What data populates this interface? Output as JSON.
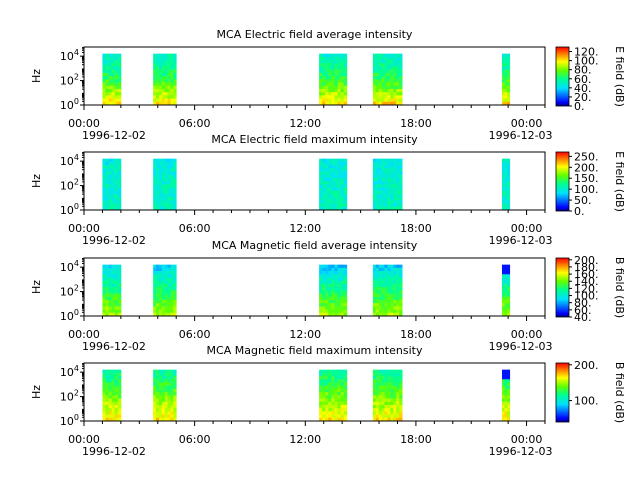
{
  "figure": {
    "x_tick_labels": [
      "00:00",
      "06:00",
      "12:00",
      "18:00",
      "00:00"
    ],
    "x_date_labels": [
      "1996-12-02",
      "1996-12-03"
    ]
  },
  "chart_data": [
    {
      "type": "heatmap",
      "title": "MCA  Electric field average intensity",
      "ylabel": "Hz",
      "ylim": [
        1,
        56000
      ],
      "y_scale": "log",
      "y_tick_labels": [
        "10^0",
        "10^2",
        "10^4"
      ],
      "xlim": [
        "1996-12-02T00:00",
        "1996-12-03T01:00"
      ],
      "colorbar": {
        "label": "E field (dB)",
        "range": [
          0,
          130
        ],
        "ticks": [
          "0.",
          "20.",
          "40.",
          "60.",
          "80.",
          "100.",
          "120."
        ]
      },
      "intervals": [
        {
          "start": "1996-12-02T01:00",
          "end": "1996-12-02T02:00"
        },
        {
          "start": "1996-12-02T03:45",
          "end": "1996-12-02T05:00"
        },
        {
          "start": "1996-12-02T12:45",
          "end": "1996-12-02T14:15"
        },
        {
          "start": "1996-12-02T15:40",
          "end": "1996-12-02T17:15"
        },
        {
          "start": "1996-12-02T22:40",
          "end": "1996-12-02T23:05"
        }
      ]
    },
    {
      "type": "heatmap",
      "title": "MCA  Electric field maximum intensity",
      "ylabel": "Hz",
      "ylim": [
        1,
        56000
      ],
      "y_scale": "log",
      "y_tick_labels": [
        "10^0",
        "10^2",
        "10^4"
      ],
      "xlim": [
        "1996-12-02T00:00",
        "1996-12-03T01:00"
      ],
      "colorbar": {
        "label": "E field (dB)",
        "range": [
          0,
          270
        ],
        "ticks": [
          "0.",
          "50.",
          "100.",
          "150.",
          "200.",
          "250."
        ]
      },
      "intervals": [
        {
          "start": "1996-12-02T01:00",
          "end": "1996-12-02T02:00"
        },
        {
          "start": "1996-12-02T03:45",
          "end": "1996-12-02T05:00"
        },
        {
          "start": "1996-12-02T12:45",
          "end": "1996-12-02T14:15"
        },
        {
          "start": "1996-12-02T15:40",
          "end": "1996-12-02T17:15"
        },
        {
          "start": "1996-12-02T22:40",
          "end": "1996-12-02T23:05"
        }
      ]
    },
    {
      "type": "heatmap",
      "title": "MCA  Magnetic field average intensity",
      "ylabel": "Hz",
      "ylim": [
        1,
        56000
      ],
      "y_scale": "log",
      "y_tick_labels": [
        "10^0",
        "10^2",
        "10^4"
      ],
      "xlim": [
        "1996-12-02T00:00",
        "1996-12-03T01:00"
      ],
      "colorbar": {
        "label": "B field (dB)",
        "range": [
          40,
          205
        ],
        "ticks": [
          "40.",
          "60.",
          "80.",
          "100.",
          "120.",
          "140.",
          "160.",
          "180.",
          "200."
        ]
      },
      "intervals": [
        {
          "start": "1996-12-02T01:00",
          "end": "1996-12-02T02:00"
        },
        {
          "start": "1996-12-02T03:45",
          "end": "1996-12-02T05:00"
        },
        {
          "start": "1996-12-02T12:45",
          "end": "1996-12-02T14:15"
        },
        {
          "start": "1996-12-02T15:40",
          "end": "1996-12-02T17:15"
        },
        {
          "start": "1996-12-02T22:40",
          "end": "1996-12-02T23:05"
        }
      ]
    },
    {
      "type": "heatmap",
      "title": "MCA  Magnetic field maximum intensity",
      "ylabel": "Hz",
      "ylim": [
        1,
        56000
      ],
      "y_scale": "log",
      "y_tick_labels": [
        "10^0",
        "10^2",
        "10^4"
      ],
      "xlim": [
        "1996-12-02T00:00",
        "1996-12-03T01:00"
      ],
      "colorbar": {
        "label": "B field (dB)",
        "range": [
          40,
          205
        ],
        "ticks": [
          "100.",
          "200."
        ]
      },
      "intervals": [
        {
          "start": "1996-12-02T01:00",
          "end": "1996-12-02T02:00"
        },
        {
          "start": "1996-12-02T03:45",
          "end": "1996-12-02T05:00"
        },
        {
          "start": "1996-12-02T12:45",
          "end": "1996-12-02T14:15"
        },
        {
          "start": "1996-12-02T15:40",
          "end": "1996-12-02T17:15"
        },
        {
          "start": "1996-12-02T22:40",
          "end": "1996-12-02T23:05"
        }
      ]
    }
  ]
}
